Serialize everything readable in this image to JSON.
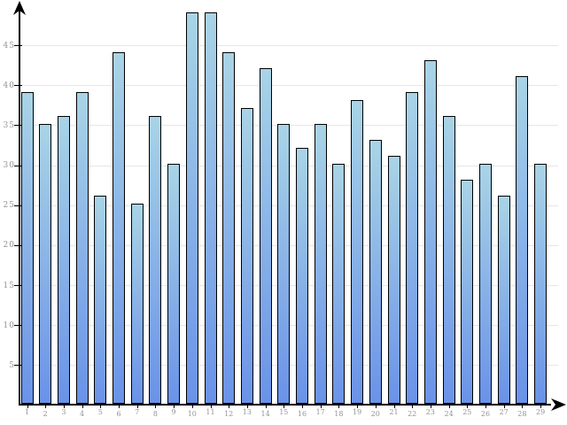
{
  "chart_data": {
    "type": "bar",
    "title": "",
    "xlabel": "",
    "ylabel": "",
    "categories": [
      "1",
      "2",
      "3",
      "4",
      "5",
      "6",
      "7",
      "8",
      "9",
      "10",
      "11",
      "12",
      "13",
      "14",
      "15",
      "16",
      "17",
      "18",
      "19",
      "20",
      "21",
      "22",
      "23",
      "24",
      "25",
      "26",
      "27",
      "28",
      "29"
    ],
    "values": [
      39,
      35,
      36,
      39,
      26,
      44,
      25,
      36,
      30,
      49,
      49,
      44,
      37,
      42,
      35,
      32,
      35,
      30,
      38,
      33,
      31,
      39,
      43,
      36,
      28,
      30,
      26,
      41,
      30
    ],
    "ylim": [
      0,
      50
    ],
    "yticks": [
      5,
      10,
      15,
      20,
      25,
      30,
      35,
      40,
      45
    ],
    "grid": true,
    "legend": "none",
    "colors": {
      "bar_gradient_top": "#a9d4e6",
      "bar_gradient_bottom": "#6a92e8",
      "bar_border": "#000000",
      "gridline": "#e6e6e6",
      "axis": "#000000",
      "tick_label": "#949494",
      "background": "#ffffff"
    }
  }
}
